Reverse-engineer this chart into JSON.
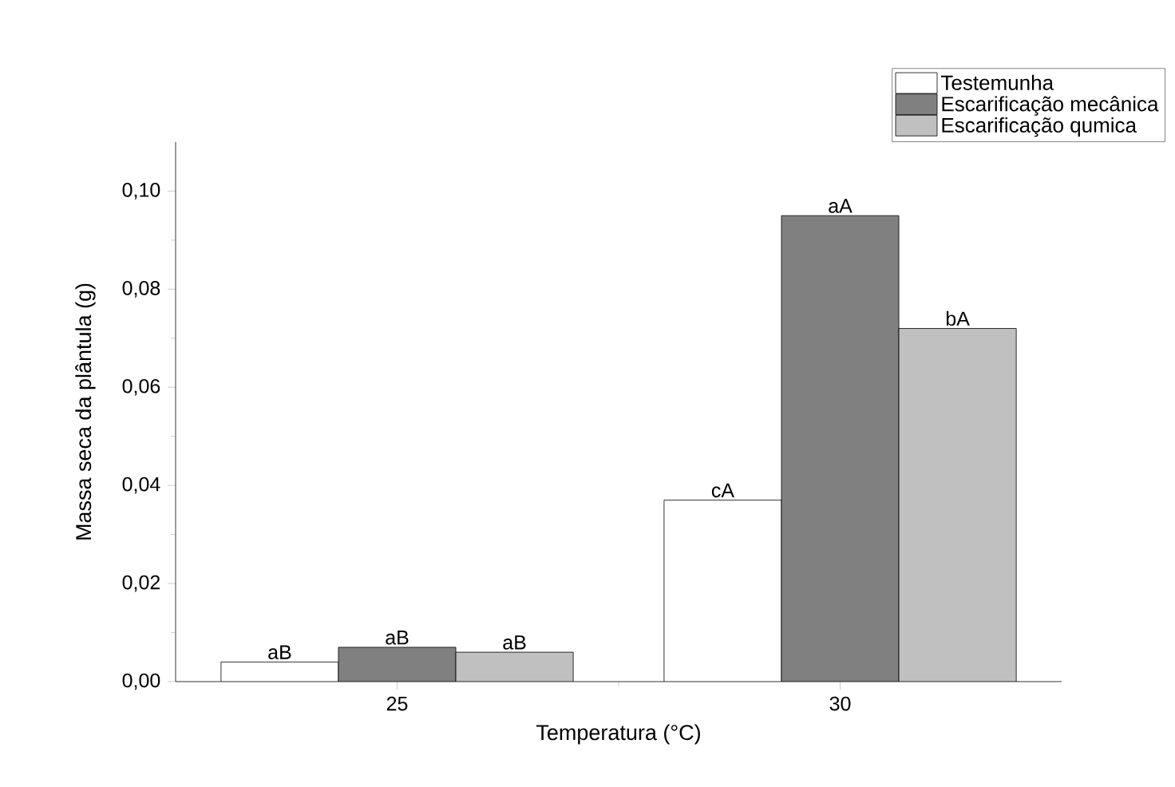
{
  "chart_data": {
    "type": "bar",
    "xlabel": "Temperatura (°C)",
    "ylabel": "Massa seca da plântula (g)",
    "categories": [
      "25",
      "30"
    ],
    "series": [
      {
        "name": "Testemunha",
        "color": "#ffffff",
        "values": [
          0.004,
          0.037
        ],
        "value_labels": [
          "aB",
          "cA"
        ]
      },
      {
        "name": "Escarificação mecânica",
        "color": "#808080",
        "values": [
          0.007,
          0.095
        ],
        "value_labels": [
          "aB",
          "aA"
        ]
      },
      {
        "name": "Escarificação qumica",
        "color": "#c0c0c0",
        "values": [
          0.006,
          0.072
        ],
        "value_labels": [
          "aB",
          "bA"
        ]
      }
    ],
    "ylim": [
      0,
      0.11
    ],
    "yticks": [
      {
        "value": 0,
        "label": "0,00"
      },
      {
        "value": 0.01,
        "label": null
      },
      {
        "value": 0.02,
        "label": "0,02"
      },
      {
        "value": 0.03,
        "label": null
      },
      {
        "value": 0.04,
        "label": "0,04"
      },
      {
        "value": 0.05,
        "label": null
      },
      {
        "value": 0.06,
        "label": "0,06"
      },
      {
        "value": 0.07,
        "label": null
      },
      {
        "value": 0.08,
        "label": "0,08"
      },
      {
        "value": 0.09,
        "label": null
      },
      {
        "value": 0.1,
        "label": "0,10"
      }
    ],
    "legend": "top right",
    "grid": false
  }
}
